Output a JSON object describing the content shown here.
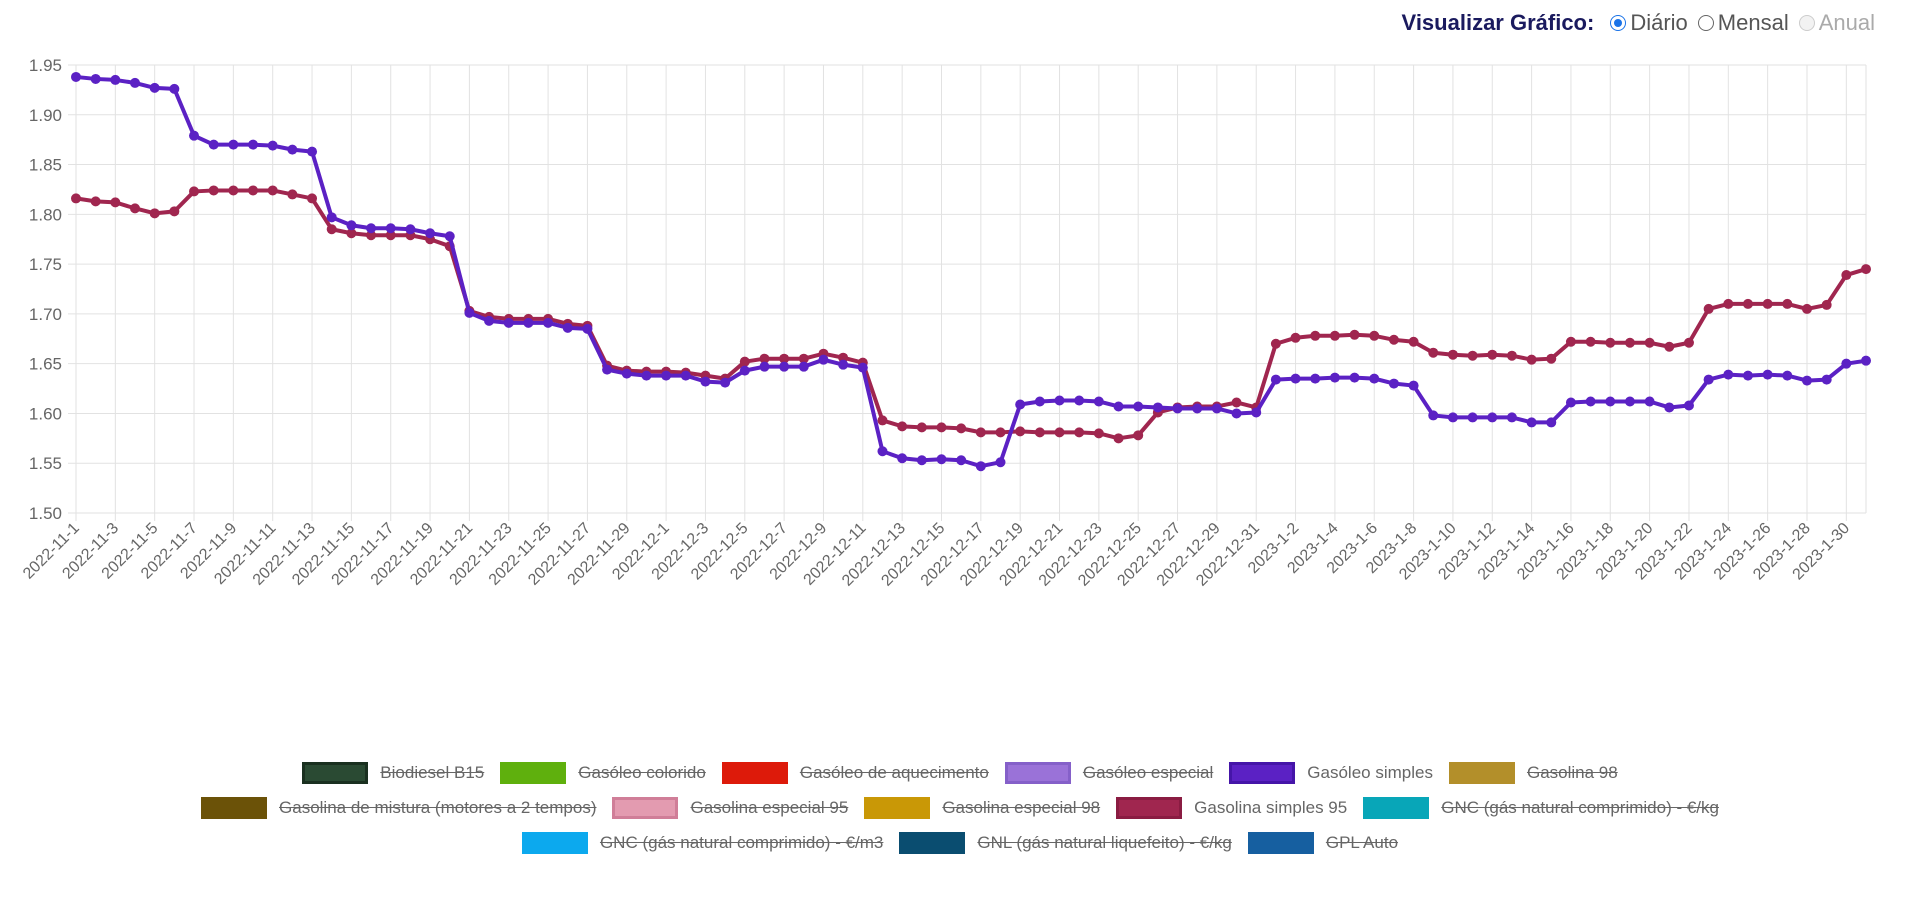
{
  "header": {
    "label": "Visualizar Gráfico:",
    "options": [
      {
        "label": "Diário",
        "state": "checked"
      },
      {
        "label": "Mensal",
        "state": "unchecked"
      },
      {
        "label": "Anual",
        "state": "disabled"
      }
    ]
  },
  "chart_data": {
    "type": "line",
    "ylim": [
      1.5,
      1.95
    ],
    "yticks": [
      "1.50",
      "1.55",
      "1.60",
      "1.65",
      "1.70",
      "1.75",
      "1.80",
      "1.85",
      "1.90",
      "1.95"
    ],
    "grid": true,
    "legend_placement": "bottom",
    "x_start": "2022-11-1",
    "x_end": "2023-1-31",
    "x_tick_every_days": 2,
    "series": [
      {
        "name": "Gasóleo simples",
        "color": "#5b21c4",
        "visible": true,
        "values": [
          1.938,
          1.936,
          1.935,
          1.932,
          1.927,
          1.926,
          1.879,
          1.87,
          1.87,
          1.87,
          1.869,
          1.865,
          1.863,
          1.797,
          1.789,
          1.786,
          1.786,
          1.785,
          1.781,
          1.778,
          1.701,
          1.693,
          1.691,
          1.691,
          1.691,
          1.686,
          1.685,
          1.644,
          1.64,
          1.638,
          1.638,
          1.638,
          1.632,
          1.631,
          1.643,
          1.647,
          1.647,
          1.647,
          1.654,
          1.649,
          1.646,
          1.562,
          1.555,
          1.553,
          1.554,
          1.553,
          1.547,
          1.551,
          1.609,
          1.612,
          1.613,
          1.613,
          1.612,
          1.607,
          1.607,
          1.606,
          1.605,
          1.605,
          1.605,
          1.6,
          1.601,
          1.634,
          1.635,
          1.635,
          1.636,
          1.636,
          1.635,
          1.63,
          1.628,
          1.598,
          1.596,
          1.596,
          1.596,
          1.596,
          1.591,
          1.591,
          1.611,
          1.612,
          1.612,
          1.612,
          1.612,
          1.606,
          1.608,
          1.634,
          1.639,
          1.638,
          1.639,
          1.638,
          1.633,
          1.634,
          1.65,
          1.653
        ]
      },
      {
        "name": "Gasolina simples 95",
        "color": "#a0264f",
        "visible": true,
        "values": [
          1.816,
          1.813,
          1.812,
          1.806,
          1.801,
          1.803,
          1.823,
          1.824,
          1.824,
          1.824,
          1.824,
          1.82,
          1.816,
          1.785,
          1.781,
          1.779,
          1.779,
          1.779,
          1.775,
          1.768,
          1.703,
          1.697,
          1.695,
          1.695,
          1.695,
          1.69,
          1.688,
          1.648,
          1.643,
          1.642,
          1.642,
          1.641,
          1.638,
          1.635,
          1.652,
          1.655,
          1.655,
          1.655,
          1.66,
          1.656,
          1.651,
          1.593,
          1.587,
          1.586,
          1.586,
          1.585,
          1.581,
          1.581,
          1.582,
          1.581,
          1.581,
          1.581,
          1.58,
          1.575,
          1.578,
          1.601,
          1.606,
          1.607,
          1.607,
          1.611,
          1.606,
          1.67,
          1.676,
          1.678,
          1.678,
          1.679,
          1.678,
          1.674,
          1.672,
          1.661,
          1.659,
          1.658,
          1.659,
          1.658,
          1.654,
          1.655,
          1.672,
          1.672,
          1.671,
          1.671,
          1.671,
          1.667,
          1.671,
          1.705,
          1.71,
          1.71,
          1.71,
          1.71,
          1.705,
          1.709,
          1.739,
          1.745
        ]
      }
    ]
  },
  "legend": {
    "rows": [
      [
        {
          "label": "Biodiesel B15",
          "color": "#2a4a33",
          "border": "#1a3020",
          "hidden": true
        },
        {
          "label": "Gasóleo colorido",
          "color": "#5fb00d",
          "border": "#5fb00d",
          "hidden": true
        },
        {
          "label": "Gasóleo de aquecimento",
          "color": "#dd1a0a",
          "border": "#dd1a0a",
          "hidden": true
        },
        {
          "label": "Gasóleo especial",
          "color": "#9a72d8",
          "border": "#8560c9",
          "hidden": true
        },
        {
          "label": "Gasóleo simples",
          "color": "#5b21c4",
          "border": "#4515a8",
          "hidden": false
        },
        {
          "label": "Gasolina 98",
          "color": "#b38f2a",
          "border": "#b38f2a",
          "hidden": true
        }
      ],
      [
        {
          "label": "Gasolina de mistura (motores a 2 tempos)",
          "color": "#6b5208",
          "border": "#6b5208",
          "hidden": true
        },
        {
          "label": "Gasolina especial 95",
          "color": "#e39bb0",
          "border": "#d07e98",
          "hidden": true
        },
        {
          "label": "Gasolina especial 98",
          "color": "#c99806",
          "border": "#c99806",
          "hidden": true
        },
        {
          "label": "Gasolina simples 95",
          "color": "#a0264f",
          "border": "#8a1c42",
          "hidden": false
        },
        {
          "label": "GNC (gás natural comprimido) - €/kg",
          "color": "#08a6b8",
          "border": "#08a6b8",
          "hidden": true
        }
      ],
      [
        {
          "label": "GNC (gás natural comprimido) - €/m3",
          "color": "#0ca9ee",
          "border": "#0ca9ee",
          "hidden": true
        },
        {
          "label": "GNL (gás natural liquefeito) - €/kg",
          "color": "#0a4d70",
          "border": "#0a4d70",
          "hidden": true
        },
        {
          "label": "GPL Auto",
          "color": "#165fa0",
          "border": "#165fa0",
          "hidden": true
        }
      ]
    ]
  }
}
